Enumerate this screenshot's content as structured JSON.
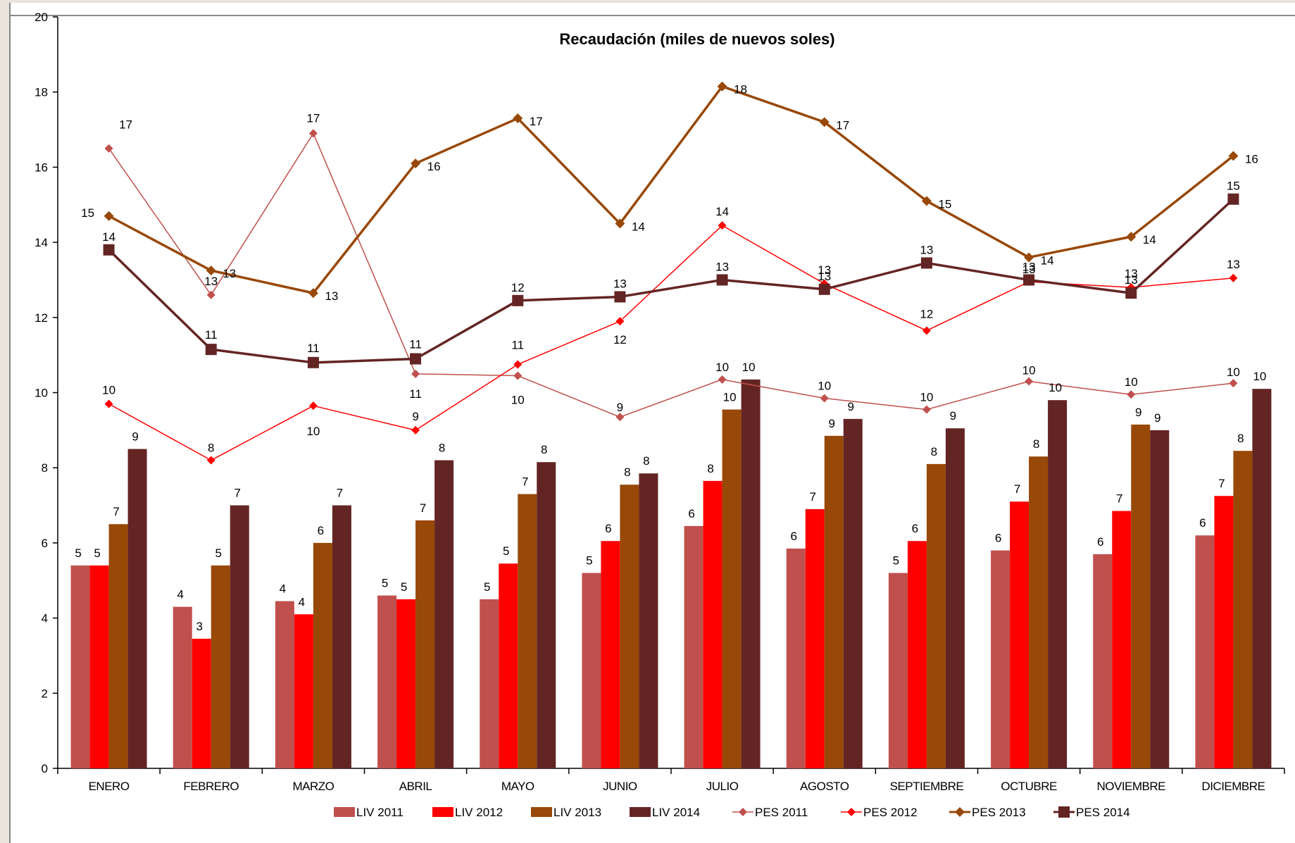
{
  "chart_data": {
    "type": "bar",
    "title": "Recaudación  (miles de nuevos soles)",
    "xlabel": "",
    "ylabel": "",
    "ylim": [
      0,
      20
    ],
    "y_ticks": [
      0,
      2,
      4,
      6,
      8,
      10,
      12,
      14,
      16,
      18,
      20
    ],
    "grid": false,
    "legend_position": "bottom",
    "categories": [
      "ENERO",
      "FEBRERO",
      "MARZO",
      "ABRIL",
      "MAYO",
      "JUNIO",
      "JULIO",
      "AGOSTO",
      "SEPTIEMBRE",
      "OCTUBRE",
      "NOVIEMBRE",
      "DICIEMBRE"
    ],
    "series": [
      {
        "name": "LIV 2011",
        "kind": "bar",
        "color": "#c0504d",
        "values": [
          5.4,
          4.3,
          4.45,
          4.6,
          4.5,
          5.2,
          6.45,
          5.85,
          5.2,
          5.8,
          5.7,
          6.2
        ]
      },
      {
        "name": "LIV 2012",
        "kind": "bar",
        "color": "#ff0000",
        "values": [
          5.4,
          3.45,
          4.1,
          4.5,
          5.45,
          6.05,
          7.65,
          6.9,
          6.05,
          7.1,
          6.85,
          7.25
        ]
      },
      {
        "name": "LIV 2013",
        "kind": "bar",
        "color": "#984807",
        "values": [
          6.5,
          5.4,
          6.0,
          6.6,
          7.3,
          7.55,
          9.55,
          8.85,
          8.1,
          8.3,
          9.15,
          8.45
        ]
      },
      {
        "name": "LIV 2014",
        "kind": "bar",
        "color": "#632523",
        "values": [
          8.5,
          7.0,
          7.0,
          8.2,
          8.15,
          7.85,
          10.35,
          9.3,
          9.05,
          9.8,
          9.0,
          10.1
        ]
      },
      {
        "name": "PES 2011",
        "kind": "line",
        "color": "#c0504d",
        "marker": "diamond",
        "values": [
          16.5,
          12.6,
          16.9,
          10.5,
          10.45,
          9.35,
          10.35,
          9.85,
          9.55,
          10.3,
          9.95,
          10.25
        ]
      },
      {
        "name": "PES 2012",
        "kind": "line",
        "color": "#ff0000",
        "marker": "diamond",
        "values": [
          9.7,
          8.2,
          9.65,
          9.0,
          10.75,
          11.9,
          14.45,
          12.9,
          11.65,
          12.95,
          12.8,
          13.05
        ]
      },
      {
        "name": "PES 2013",
        "kind": "line",
        "color": "#984807",
        "marker": "diamond",
        "values": [
          14.7,
          13.25,
          12.65,
          16.1,
          17.3,
          14.5,
          18.15,
          17.2,
          15.1,
          13.6,
          14.15,
          16.3
        ]
      },
      {
        "name": "PES 2014",
        "kind": "line",
        "color": "#632523",
        "marker": "square",
        "values": [
          13.8,
          11.15,
          10.8,
          10.9,
          12.45,
          12.55,
          13.0,
          12.75,
          13.45,
          13.0,
          12.65,
          15.15
        ]
      }
    ],
    "data_labels": {
      "LIV 2011": [
        "5",
        "4",
        "4",
        "5",
        "5",
        "5",
        "6",
        "6",
        "5",
        "6",
        "6",
        "6"
      ],
      "LIV 2012": [
        "5",
        "3",
        "4",
        "5",
        "5",
        "6",
        "8",
        "7",
        "6",
        "7",
        "7",
        "7"
      ],
      "LIV 2013": [
        "7",
        "5",
        "6",
        "7",
        "7",
        "8",
        "10",
        "9",
        "8",
        "8",
        "9",
        "8"
      ],
      "LIV 2014": [
        "9",
        "7",
        "7",
        "8",
        "8",
        "8",
        "10",
        "9",
        "9",
        "10",
        "9",
        "10"
      ],
      "PES 2011": [
        "17",
        "13",
        "17",
        "11",
        "10",
        "9",
        "10",
        "10",
        "10",
        "10",
        "10",
        "10"
      ],
      "PES 2012": [
        "10",
        "8",
        "10",
        "9",
        "11",
        "12",
        "14",
        "13",
        "12",
        "13",
        "13",
        "13"
      ],
      "PES 2013": [
        "15",
        "13",
        "13",
        "16",
        "17",
        "14",
        "18",
        "17",
        "15",
        "14",
        "14",
        "16"
      ],
      "PES 2014": [
        "14",
        "11",
        "11",
        "11",
        "12",
        "13",
        "13",
        "13",
        "13",
        "13",
        "13",
        "15"
      ]
    }
  }
}
